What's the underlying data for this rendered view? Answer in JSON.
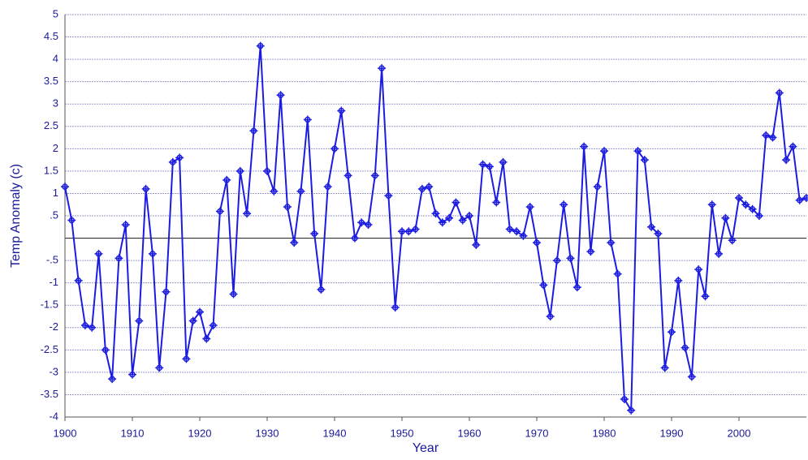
{
  "chart_data": {
    "type": "line",
    "x_label": "Year",
    "y_label": "Temp Anomaly (c)",
    "x": [
      1900,
      1901,
      1902,
      1903,
      1904,
      1905,
      1906,
      1907,
      1908,
      1909,
      1910,
      1911,
      1912,
      1913,
      1914,
      1915,
      1916,
      1917,
      1918,
      1919,
      1920,
      1921,
      1922,
      1923,
      1924,
      1925,
      1926,
      1927,
      1928,
      1929,
      1930,
      1931,
      1932,
      1933,
      1934,
      1935,
      1936,
      1937,
      1938,
      1939,
      1940,
      1941,
      1942,
      1943,
      1944,
      1945,
      1946,
      1947,
      1948,
      1949,
      1950,
      1951,
      1952,
      1953,
      1954,
      1955,
      1956,
      1957,
      1958,
      1959,
      1960,
      1961,
      1962,
      1963,
      1964,
      1965,
      1966,
      1967,
      1968,
      1969,
      1970,
      1971,
      1972,
      1973,
      1974,
      1975,
      1976,
      1977,
      1978,
      1979,
      1980,
      1981,
      1982,
      1983,
      1984,
      1985,
      1986,
      1987,
      1988,
      1989,
      1990,
      1991,
      1992,
      1993,
      1994,
      1995,
      1996,
      1997,
      1998,
      1999,
      2000,
      2001,
      2002,
      2003,
      2004,
      2005,
      2006,
      2007,
      2008,
      2009,
      2010
    ],
    "values": [
      1.15,
      0.4,
      -0.95,
      -1.95,
      -2.0,
      -0.35,
      -2.5,
      -3.15,
      -0.45,
      0.3,
      -3.05,
      -1.85,
      1.1,
      -0.35,
      -2.9,
      -1.2,
      1.7,
      1.8,
      -2.7,
      -1.85,
      -1.65,
      -2.25,
      -1.95,
      0.6,
      1.3,
      -1.25,
      1.5,
      0.55,
      2.4,
      4.3,
      1.5,
      1.05,
      3.2,
      0.7,
      -0.1,
      1.05,
      2.65,
      0.1,
      -1.15,
      1.15,
      2.0,
      2.85,
      1.4,
      0.0,
      0.35,
      0.3,
      1.4,
      3.8,
      0.95,
      -1.55,
      0.15,
      0.15,
      0.2,
      1.1,
      1.15,
      0.55,
      0.35,
      0.45,
      0.8,
      0.4,
      0.5,
      -0.15,
      1.65,
      1.6,
      0.8,
      1.7,
      0.2,
      0.15,
      0.05,
      0.7,
      -0.1,
      -1.05,
      -1.75,
      -0.5,
      0.75,
      -0.45,
      -1.1,
      2.05,
      -0.3,
      1.15,
      1.95,
      -0.1,
      -0.8,
      -3.6,
      -3.85,
      1.95,
      1.75,
      0.25,
      0.1,
      -2.9,
      -2.1,
      -0.95,
      -2.45,
      -3.1,
      -0.7,
      -1.3,
      0.75,
      -0.35,
      0.45,
      -0.05,
      0.9,
      0.75,
      0.65,
      0.5,
      2.3,
      2.25,
      3.25,
      1.75,
      2.05,
      0.85,
      0.9
    ],
    "color": "#1c1ce0",
    "xlim": [
      1900,
      2010
    ],
    "xticks": [
      1900,
      1910,
      1920,
      1930,
      1940,
      1950,
      1960,
      1970,
      1980,
      1990,
      2000
    ],
    "ylim": [
      -4,
      5
    ],
    "yticks": [
      -4,
      {
        "value": -3.5,
        "label": "-3.5"
      },
      -3,
      {
        "value": -2.5,
        "label": "-2.5"
      },
      -2,
      {
        "value": -1.5,
        "label": "-1.5"
      },
      -1,
      {
        "value": -0.5,
        "label": "-.5"
      },
      {
        "value": 0.5,
        "label": ".5"
      },
      1,
      1.5,
      2,
      2.5,
      3,
      3.5,
      4,
      4.5,
      5
    ],
    "hline": 0,
    "grid": true
  }
}
